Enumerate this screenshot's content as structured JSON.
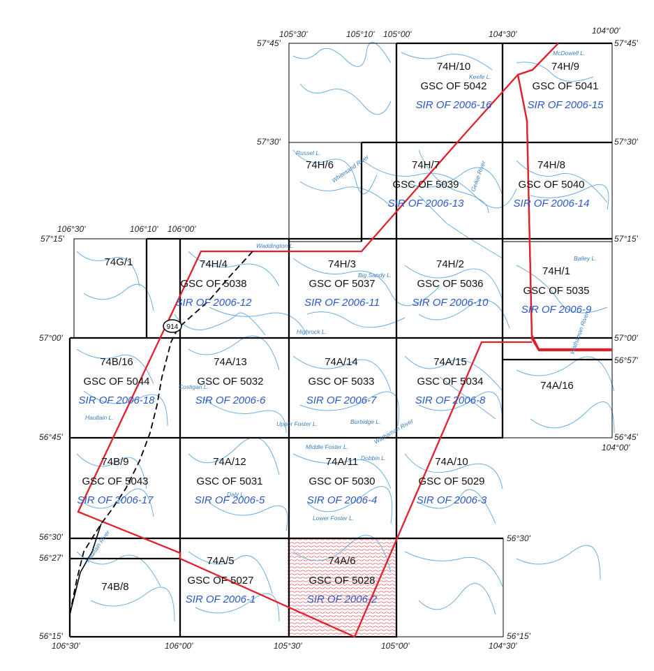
{
  "colors": {
    "sheet_label": "#111111",
    "sir_label": "#2a58c8",
    "water": "#6aaee0",
    "boundary": "#e0202c",
    "hatch": "#e0202c"
  },
  "icons": [
    "highway-shield-icon"
  ],
  "tiles": [
    {
      "id": "74H/10",
      "gsc": "GSC OF 5042",
      "sir": "SIR OF 2006-16"
    },
    {
      "id": "74H/9",
      "gsc": "GSC OF 5041",
      "sir": "SIR OF 2006-15"
    },
    {
      "id": "74H/6",
      "gsc": "",
      "sir": ""
    },
    {
      "id": "74H/7",
      "gsc": "GSC OF 5039",
      "sir": "SIR OF 2006-13"
    },
    {
      "id": "74H/8",
      "gsc": "GSC OF 5040",
      "sir": "SIR OF 2006-14"
    },
    {
      "id": "74G/1",
      "gsc": "",
      "sir": ""
    },
    {
      "id": "74H/4",
      "gsc": "GSC OF 5038",
      "sir": "SIR OF 2006-12"
    },
    {
      "id": "74H/3",
      "gsc": "GSC OF 5037",
      "sir": "SIR OF 2006-11"
    },
    {
      "id": "74H/2",
      "gsc": "GSC OF 5036",
      "sir": "SIR OF 2006-10"
    },
    {
      "id": "74H/1",
      "gsc": "GSC OF 5035",
      "sir": "SIR OF 2006-9"
    },
    {
      "id": "74B/16",
      "gsc": "GSC OF 5044",
      "sir": "SIR OF 2006-18"
    },
    {
      "id": "74A/13",
      "gsc": "GSC OF 5032",
      "sir": "SIR OF 2006-6"
    },
    {
      "id": "74A/14",
      "gsc": "GSC OF 5033",
      "sir": "SIR OF 2006-7"
    },
    {
      "id": "74A/15",
      "gsc": "GSC OF 5034",
      "sir": "SIR OF 2006-8"
    },
    {
      "id": "74A/16",
      "gsc": "",
      "sir": ""
    },
    {
      "id": "74B/9",
      "gsc": "GSC OF 5043",
      "sir": "SIR OF 2006-17"
    },
    {
      "id": "74A/12",
      "gsc": "GSC OF 5031",
      "sir": "SIR OF 2006-5"
    },
    {
      "id": "74A/11",
      "gsc": "GSC OF 5030",
      "sir": "SIR OF 2006-4"
    },
    {
      "id": "74A/10",
      "gsc": "GSC OF 5029",
      "sir": "SIR OF 2006-3"
    },
    {
      "id": "74B/8",
      "gsc": "",
      "sir": ""
    },
    {
      "id": "74A/5",
      "gsc": "GSC OF 5027",
      "sir": "SIR OF 2006-1"
    },
    {
      "id": "74A/6",
      "gsc": "GSC OF 5028",
      "sir": "SIR OF 2006-2"
    }
  ],
  "coords": {
    "top_105_30": "105°30'",
    "top_105_10": "105°10'",
    "top_105_00": "105°00'",
    "top_104_30": "104°30'",
    "top_104_00": "104°00'",
    "lat_57_45_left": "57°45'",
    "lat_57_45_right": "57°45'",
    "lat_57_30_left": "57°30'",
    "lat_57_30_right": "57°30'",
    "mid_106_30": "106°30'",
    "mid_106_10": "106°10'",
    "mid_106_00": "106°00'",
    "lat_57_15_left": "57°15'",
    "lat_57_15_right": "57°15'",
    "lat_57_00_left": "57°00'",
    "lat_57_00_right": "57°00'",
    "lat_56_57": "56°57'",
    "lat_56_45_left": "56°45'",
    "lat_56_45_right": "56°45'",
    "lon_104_00_right": "104°00'",
    "lat_56_30_left": "56°30'",
    "lat_56_30_right": "56°30'",
    "lat_56_27": "56°27'",
    "lat_56_15_left": "56°15'",
    "lat_56_15_right": "56°15'",
    "bot_106_30": "106°30'",
    "bot_106_00": "106°00'",
    "bot_105_30": "105°30'",
    "bot_105_00": "105°00'",
    "bot_104_30": "104°30'"
  },
  "features": {
    "mcdowell": "McDowell L.",
    "keefe": "Keefe L.",
    "russel": "Russel L.",
    "whitesand": "Whitesand River",
    "geikie": "Geikie River",
    "waddington": "Waddington L.",
    "big_sandy": "Big Sandy L.",
    "bailey": "Bailey L.",
    "highrock": "Highrock L.",
    "costigan": "Costigan L.",
    "haultain_l": "Haultain L.",
    "upper_foster": "Upper Foster L.",
    "burbidge": "Burbidge L.",
    "middle_foster": "Middle Foster L.",
    "wathaman": "Wathaman River",
    "dobbin": "Dobbin L.",
    "daly": "Daly L.",
    "lower_foster": "Lower Foster L.",
    "haultain_r": "Haultain River",
    "wathaman2": "Wathaman River",
    "highway": "914"
  }
}
